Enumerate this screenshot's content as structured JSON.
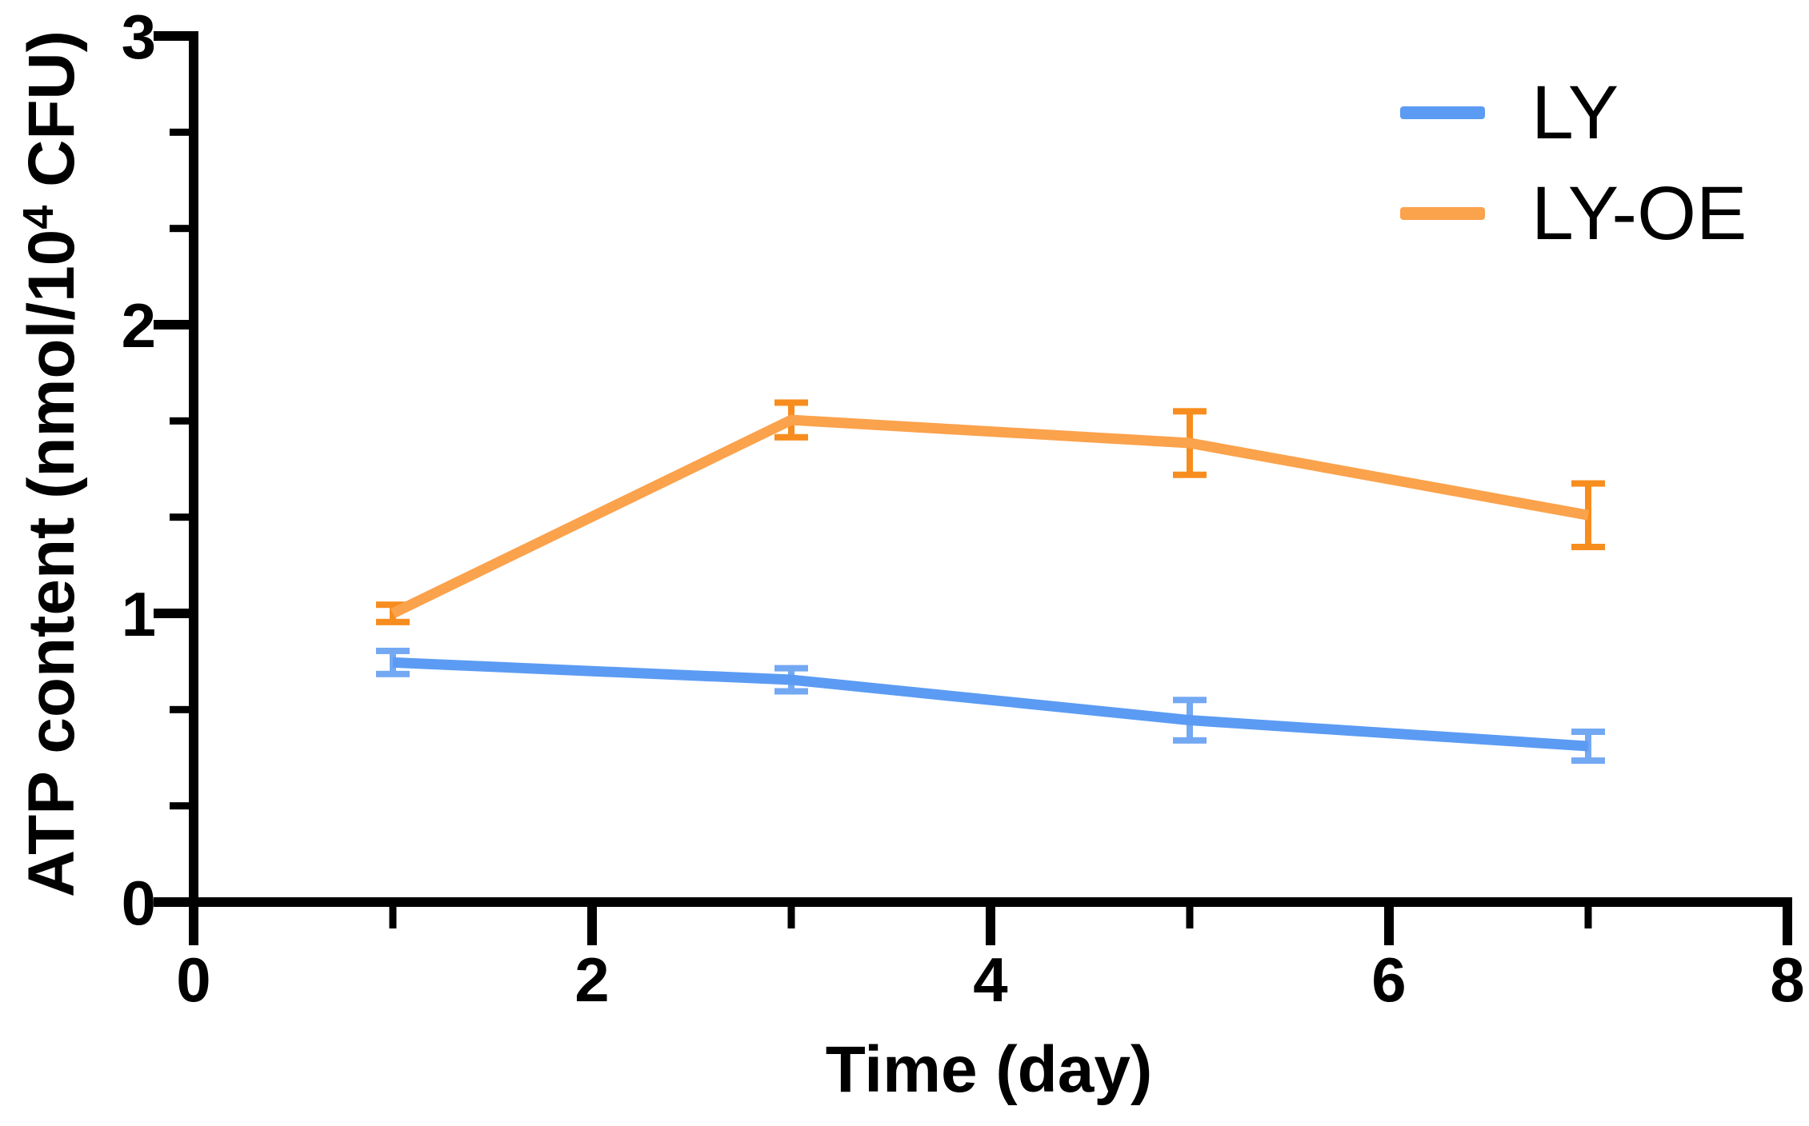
{
  "chart_data": {
    "type": "line",
    "title": "",
    "xlabel": "Time (day)",
    "ylabel": {
      "pre": "ATP content (nmol/10",
      "sup": "4",
      "post": " CFU)"
    },
    "xlim": [
      0,
      8
    ],
    "ylim": [
      0,
      3
    ],
    "x_major_ticks": [
      0,
      2,
      4,
      6,
      8
    ],
    "x_minor_ticks": [
      1,
      3,
      5,
      7
    ],
    "y_major_ticks": [
      0,
      1,
      2,
      3
    ],
    "y_minor_ticks": [
      0.3333,
      0.6667,
      1.3333,
      1.6667,
      2.3333,
      2.6667
    ],
    "grid": false,
    "legend_position": "top-right",
    "x": [
      1,
      3,
      5,
      7
    ],
    "series": [
      {
        "name": "LY",
        "color": "#5B9BF3",
        "error_color": "#73A8F3",
        "values": [
          0.83,
          0.77,
          0.63,
          0.54
        ],
        "errors": [
          0.04,
          0.04,
          0.07,
          0.05
        ]
      },
      {
        "name": "LY-OE",
        "color": "#FBA24C",
        "error_color": "#F78D1E",
        "values": [
          1.0,
          1.67,
          1.59,
          1.34
        ],
        "errors": [
          0.03,
          0.06,
          0.11,
          0.11
        ]
      }
    ]
  }
}
